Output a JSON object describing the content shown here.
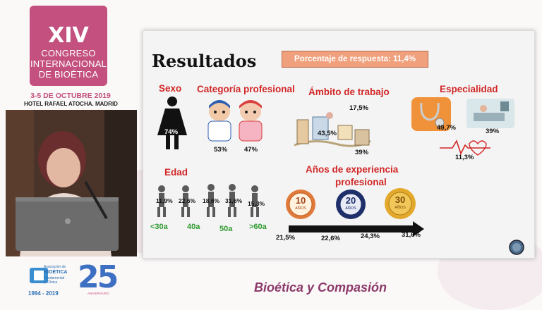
{
  "congress": {
    "number": "XIV",
    "line1": "CONGRESO",
    "line2": "INTERNACIONAL",
    "line3": "DE BIOÉTICA",
    "dates": "3-5 DE OCTUBRE 2019",
    "venue": "HOTEL RAFAEL ATOCHA. MADRID"
  },
  "slide": {
    "title": "Resultados",
    "response_rate": "Porcentaje  de respuesta: 11,4%",
    "sexo": {
      "heading": "Sexo",
      "value": "74%"
    },
    "categoria": {
      "heading": "Categoría profesional",
      "doctor": "53%",
      "nurse": "47%"
    },
    "ambito": {
      "heading": "Ámbito de trabajo",
      "v1": "17,5%",
      "v2": "43,5%",
      "v3": "39%"
    },
    "especialidad": {
      "heading": "Especialidad",
      "v1": "49,7%",
      "v2": "39%",
      "v3": "11,3%"
    },
    "edad": {
      "heading": "Edad",
      "values": [
        "11,9%",
        "22,6%",
        "18,6%",
        "31,6%",
        "15,3%"
      ],
      "labels": [
        "<30a",
        "40a",
        "50a",
        ">60a"
      ]
    },
    "experiencia": {
      "heading_line1": "Años de experiencia",
      "heading_line2": "profesional",
      "badge1_num": "10",
      "badge1_txt": "AÑOS",
      "badge2_num": "20",
      "badge2_txt": "AÑOS",
      "badge3_num": "30",
      "badge3_txt": "AÑOS",
      "values": [
        "21,5%",
        "22,6%",
        "24,3%",
        "31,6%"
      ]
    }
  },
  "logo": {
    "org1": "Asociación de",
    "org2": "BIOÉTICA",
    "org3": "Fundamental",
    "org4": "y Clínica",
    "years": "1994 - 2019",
    "anniv": "25",
    "anniv_word": "ANIVERSARIO"
  },
  "footer": "Bioética y Compasión"
}
